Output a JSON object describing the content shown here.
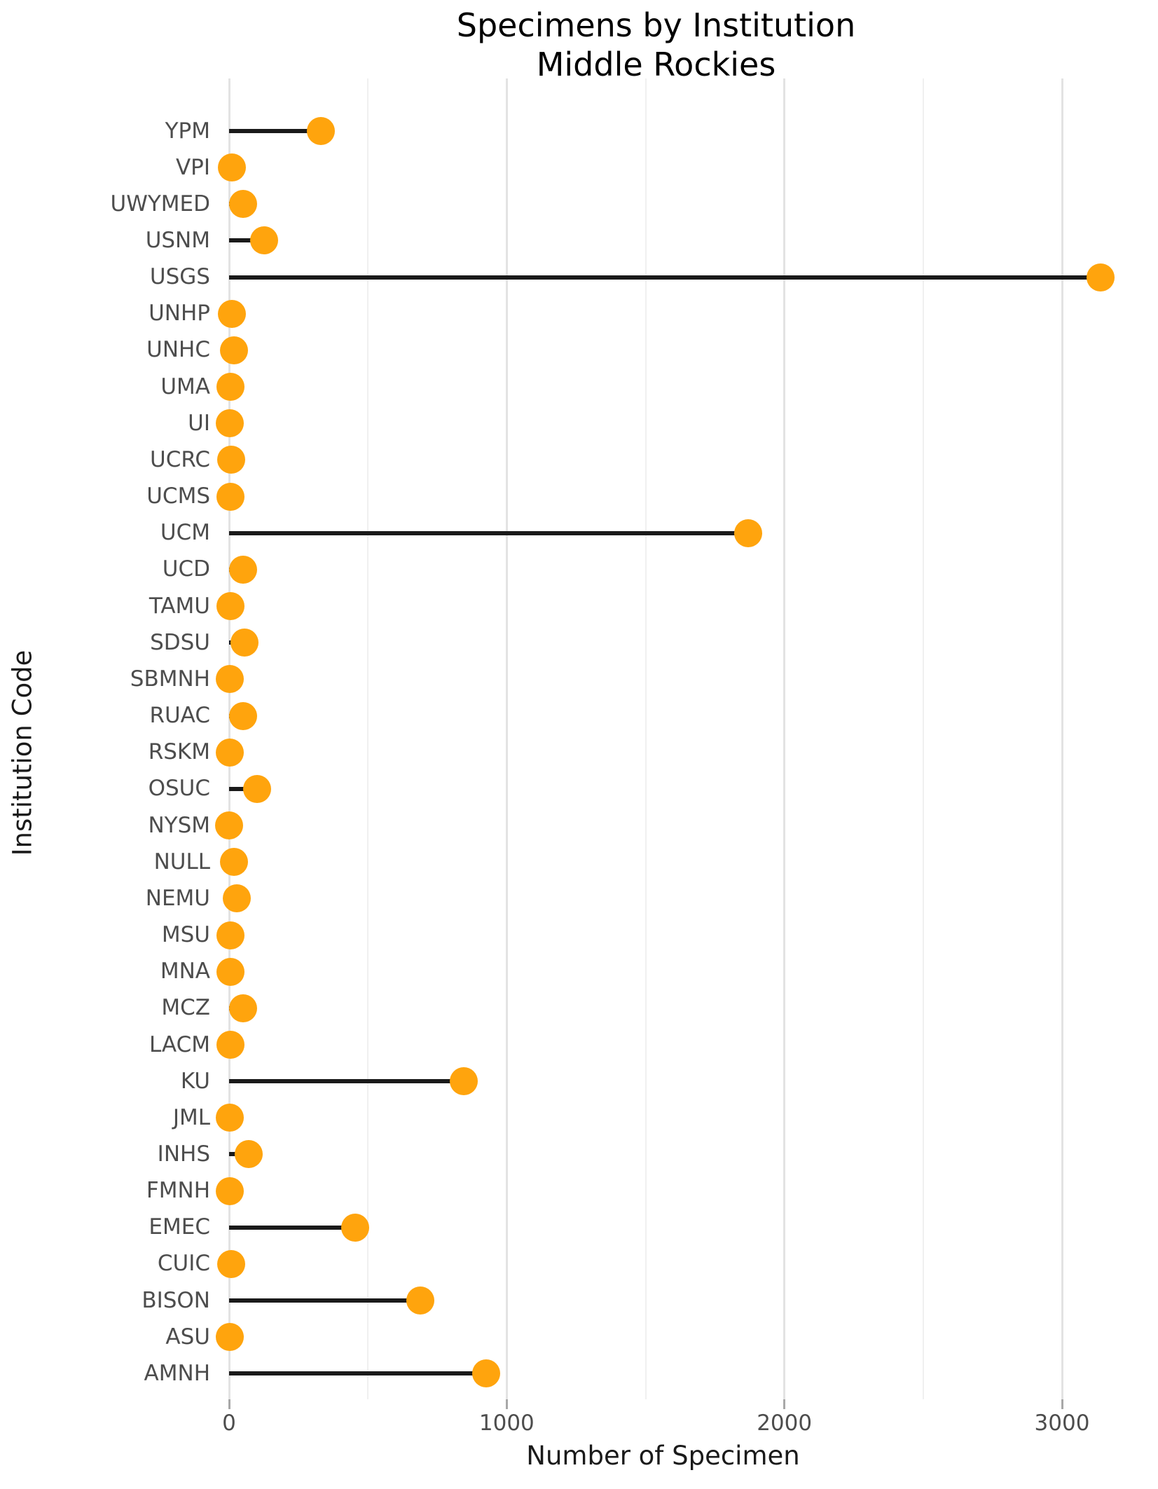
{
  "title": {
    "line1": "Specimens by Institution",
    "line2": "Middle Rockies"
  },
  "colors": {
    "dot": "#FFA40D",
    "stem": "#1A1A1A",
    "grid_major": "#E3E3E3",
    "grid_minor": "#F0F0F0",
    "tick_text": "#4D4D4D",
    "axis_title_text": "#1A1A1A"
  },
  "chart_data": {
    "type": "scatter",
    "variant": "horizontal-lollipop",
    "title": "Specimens by Institution",
    "subtitle": "Middle Rockies",
    "xlabel": "Number of Specimen",
    "ylabel": "Institution Code",
    "xlim": [
      0,
      3200
    ],
    "grid": "vertical-only",
    "legend": "none",
    "x_major_ticks": [
      0,
      1000,
      2000,
      3000
    ],
    "x_minor_gridlines": [
      500,
      1500,
      2500
    ],
    "categories": [
      "YPM",
      "VPI",
      "UWYMED",
      "USNM",
      "USGS",
      "UNHP",
      "UNHC",
      "UMA",
      "UI",
      "UCRC",
      "UCMS",
      "UCM",
      "UCD",
      "TAMU",
      "SDSU",
      "SBMNH",
      "RUAC",
      "RSKM",
      "OSUC",
      "NYSM",
      "NULL",
      "NEMU",
      "MSU",
      "MNA",
      "MCZ",
      "LACM",
      "KU",
      "JML",
      "INHS",
      "FMNH",
      "EMEC",
      "CUIC",
      "BISON",
      "ASU",
      "AMNH"
    ],
    "values": [
      330,
      10,
      50,
      125,
      3140,
      10,
      18,
      4,
      3,
      8,
      5,
      1870,
      50,
      5,
      55,
      2,
      50,
      2,
      100,
      1,
      17,
      27,
      4,
      5,
      50,
      4,
      845,
      2,
      70,
      2,
      455,
      8,
      690,
      3,
      925
    ]
  }
}
